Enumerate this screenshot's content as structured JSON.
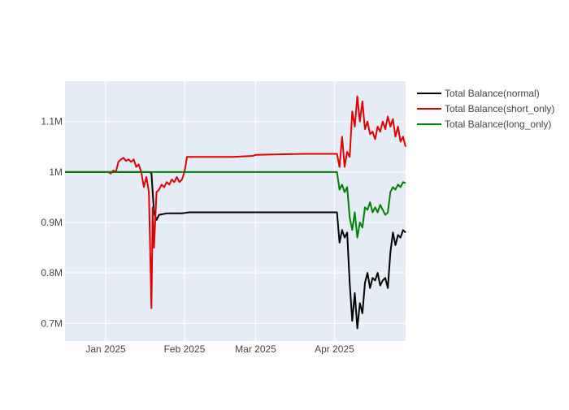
{
  "colors": {
    "plot_bg": "#e5ecf6",
    "grid": "#ffffff",
    "text": "#444444"
  },
  "chart_data": {
    "type": "line",
    "title": "",
    "xlabel": "",
    "ylabel": "",
    "xlim": [
      "2024-12-16",
      "2025-04-29"
    ],
    "ylim": [
      0.665,
      1.18
    ],
    "grid": true,
    "legend_position": "top-right",
    "x_ticks": [
      {
        "value": "2025-01-01",
        "label": "Jan 2025"
      },
      {
        "value": "2025-02-01",
        "label": "Feb 2025"
      },
      {
        "value": "2025-03-01",
        "label": "Mar 2025"
      },
      {
        "value": "2025-04-01",
        "label": "Apr 2025"
      }
    ],
    "y_ticks": [
      {
        "value": 0.7,
        "label": "0.7M"
      },
      {
        "value": 0.8,
        "label": "0.8M"
      },
      {
        "value": 0.9,
        "label": "0.9M"
      },
      {
        "value": 1.0,
        "label": "1M"
      },
      {
        "value": 1.1,
        "label": "1.1M"
      }
    ],
    "series": [
      {
        "name": "Total Balance(normal)",
        "color": "#000000",
        "points": [
          [
            "2024-12-16",
            1.0
          ],
          [
            "2024-12-30",
            1.0
          ],
          [
            "2025-01-04",
            1.0
          ],
          [
            "2025-01-12",
            1.0
          ],
          [
            "2025-01-17",
            1.0
          ],
          [
            "2025-01-18",
            1.0
          ],
          [
            "2025-01-19",
            0.998
          ],
          [
            "2025-01-20",
            0.92
          ],
          [
            "2025-01-21",
            0.905
          ],
          [
            "2025-01-22",
            0.915
          ],
          [
            "2025-01-23",
            0.916
          ],
          [
            "2025-01-25",
            0.918
          ],
          [
            "2025-01-31",
            0.918
          ],
          [
            "2025-02-03",
            0.92
          ],
          [
            "2025-02-15",
            0.92
          ],
          [
            "2025-03-01",
            0.92
          ],
          [
            "2025-03-20",
            0.92
          ],
          [
            "2025-04-02",
            0.92
          ],
          [
            "2025-04-03",
            0.86
          ],
          [
            "2025-04-04",
            0.885
          ],
          [
            "2025-04-05",
            0.87
          ],
          [
            "2025-04-06",
            0.88
          ],
          [
            "2025-04-07",
            0.78
          ],
          [
            "2025-04-08",
            0.705
          ],
          [
            "2025-04-09",
            0.76
          ],
          [
            "2025-04-10",
            0.69
          ],
          [
            "2025-04-11",
            0.74
          ],
          [
            "2025-04-12",
            0.72
          ],
          [
            "2025-04-13",
            0.78
          ],
          [
            "2025-04-14",
            0.8
          ],
          [
            "2025-04-15",
            0.77
          ],
          [
            "2025-04-16",
            0.79
          ],
          [
            "2025-04-17",
            0.785
          ],
          [
            "2025-04-18",
            0.8
          ],
          [
            "2025-04-19",
            0.775
          ],
          [
            "2025-04-20",
            0.785
          ],
          [
            "2025-04-21",
            0.79
          ],
          [
            "2025-04-22",
            0.77
          ],
          [
            "2025-04-23",
            0.84
          ],
          [
            "2025-04-24",
            0.88
          ],
          [
            "2025-04-25",
            0.855
          ],
          [
            "2025-04-26",
            0.875
          ],
          [
            "2025-04-27",
            0.87
          ],
          [
            "2025-04-28",
            0.885
          ],
          [
            "2025-04-29",
            0.88
          ]
        ]
      },
      {
        "name": "Total Balance(short_only)",
        "color": "#e00000",
        "points": [
          [
            "2024-12-16",
            1.0
          ],
          [
            "2024-12-28",
            1.0
          ],
          [
            "2025-01-02",
            1.0
          ],
          [
            "2025-01-03",
            0.997
          ],
          [
            "2025-01-04",
            1.003
          ],
          [
            "2025-01-05",
            1.0
          ],
          [
            "2025-01-06",
            1.02
          ],
          [
            "2025-01-07",
            1.025
          ],
          [
            "2025-01-08",
            1.028
          ],
          [
            "2025-01-09",
            1.022
          ],
          [
            "2025-01-10",
            1.025
          ],
          [
            "2025-01-11",
            1.02
          ],
          [
            "2025-01-12",
            1.025
          ],
          [
            "2025-01-13",
            1.01
          ],
          [
            "2025-01-14",
            1.015
          ],
          [
            "2025-01-15",
            1.0
          ],
          [
            "2025-01-16",
            0.97
          ],
          [
            "2025-01-17",
            0.99
          ],
          [
            "2025-01-18",
            0.96
          ],
          [
            "2025-01-19",
            0.73
          ],
          [
            "2025-01-19T12:00",
            0.93
          ],
          [
            "2025-01-20",
            0.85
          ],
          [
            "2025-01-21",
            0.96
          ],
          [
            "2025-01-22",
            0.965
          ],
          [
            "2025-01-23",
            0.975
          ],
          [
            "2025-01-24",
            0.97
          ],
          [
            "2025-01-25",
            0.98
          ],
          [
            "2025-01-26",
            0.975
          ],
          [
            "2025-01-27",
            0.985
          ],
          [
            "2025-01-28",
            0.98
          ],
          [
            "2025-01-29",
            0.99
          ],
          [
            "2025-01-30",
            0.98
          ],
          [
            "2025-01-31",
            0.985
          ],
          [
            "2025-02-01",
            1.0
          ],
          [
            "2025-02-02",
            1.03
          ],
          [
            "2025-02-10",
            1.03
          ],
          [
            "2025-02-20",
            1.03
          ],
          [
            "2025-02-28",
            1.032
          ],
          [
            "2025-03-01",
            1.034
          ],
          [
            "2025-03-10",
            1.035
          ],
          [
            "2025-03-20",
            1.036
          ],
          [
            "2025-04-02",
            1.036
          ],
          [
            "2025-04-03",
            1.01
          ],
          [
            "2025-04-04",
            1.07
          ],
          [
            "2025-04-05",
            1.01
          ],
          [
            "2025-04-06",
            1.04
          ],
          [
            "2025-04-07",
            1.03
          ],
          [
            "2025-04-08",
            1.12
          ],
          [
            "2025-04-09",
            1.09
          ],
          [
            "2025-04-10",
            1.15
          ],
          [
            "2025-04-11",
            1.1
          ],
          [
            "2025-04-12",
            1.14
          ],
          [
            "2025-04-13",
            1.085
          ],
          [
            "2025-04-14",
            1.1
          ],
          [
            "2025-04-15",
            1.075
          ],
          [
            "2025-04-16",
            1.08
          ],
          [
            "2025-04-17",
            1.065
          ],
          [
            "2025-04-18",
            1.09
          ],
          [
            "2025-04-19",
            1.08
          ],
          [
            "2025-04-20",
            1.1
          ],
          [
            "2025-04-21",
            1.085
          ],
          [
            "2025-04-22",
            1.11
          ],
          [
            "2025-04-23",
            1.09
          ],
          [
            "2025-04-24",
            1.105
          ],
          [
            "2025-04-25",
            1.07
          ],
          [
            "2025-04-26",
            1.09
          ],
          [
            "2025-04-27",
            1.06
          ],
          [
            "2025-04-28",
            1.07
          ],
          [
            "2025-04-29",
            1.05
          ]
        ]
      },
      {
        "name": "Total Balance(long_only)",
        "color": "#008000",
        "points": [
          [
            "2024-12-16",
            1.0
          ],
          [
            "2025-01-15",
            1.0
          ],
          [
            "2025-02-15",
            1.0
          ],
          [
            "2025-03-15",
            1.0
          ],
          [
            "2025-04-02",
            1.0
          ],
          [
            "2025-04-03",
            0.965
          ],
          [
            "2025-04-04",
            0.975
          ],
          [
            "2025-04-05",
            0.96
          ],
          [
            "2025-04-06",
            0.97
          ],
          [
            "2025-04-07",
            0.91
          ],
          [
            "2025-04-08",
            0.885
          ],
          [
            "2025-04-09",
            0.92
          ],
          [
            "2025-04-10",
            0.87
          ],
          [
            "2025-04-11",
            0.9
          ],
          [
            "2025-04-12",
            0.89
          ],
          [
            "2025-04-13",
            0.93
          ],
          [
            "2025-04-14",
            0.925
          ],
          [
            "2025-04-15",
            0.94
          ],
          [
            "2025-04-16",
            0.92
          ],
          [
            "2025-04-17",
            0.93
          ],
          [
            "2025-04-18",
            0.92
          ],
          [
            "2025-04-19",
            0.935
          ],
          [
            "2025-04-20",
            0.925
          ],
          [
            "2025-04-21",
            0.915
          ],
          [
            "2025-04-22",
            0.92
          ],
          [
            "2025-04-23",
            0.96
          ],
          [
            "2025-04-24",
            0.97
          ],
          [
            "2025-04-25",
            0.965
          ],
          [
            "2025-04-26",
            0.975
          ],
          [
            "2025-04-27",
            0.97
          ],
          [
            "2025-04-28",
            0.98
          ],
          [
            "2025-04-29",
            0.978
          ]
        ]
      }
    ]
  }
}
